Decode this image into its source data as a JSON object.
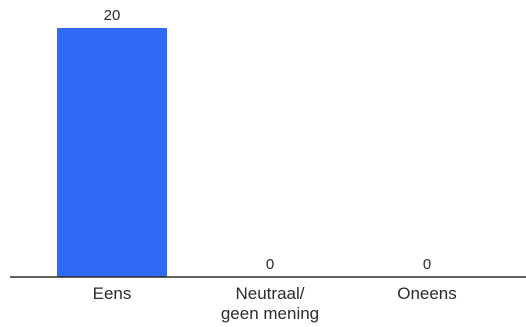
{
  "chart_data": {
    "type": "bar",
    "categories": [
      [
        "Eens"
      ],
      [
        "Neutraal/",
        "geen mening"
      ],
      [
        "Oneens"
      ]
    ],
    "values": [
      20,
      0,
      0
    ],
    "ylim": [
      0,
      20
    ],
    "grid": false,
    "colors": {
      "bar": "#2f6bf5",
      "axis": "#2b2b2b",
      "text": "#2b2b2b"
    }
  }
}
